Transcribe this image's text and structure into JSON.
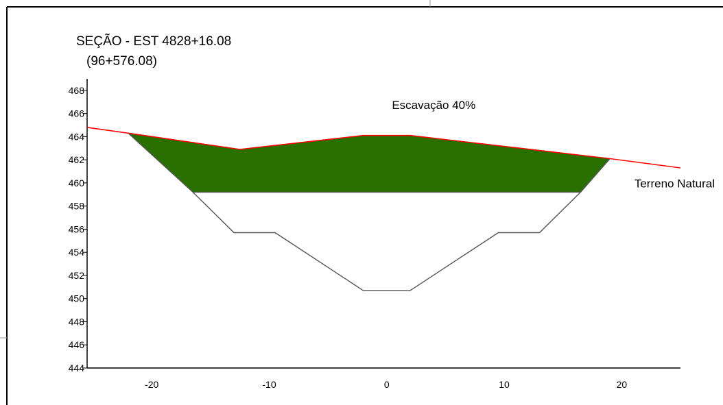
{
  "chart_data": {
    "type": "area",
    "title": "SEÇÃO - EST 4828+16.08",
    "subtitle": "(96+576.08)",
    "xlabel": "",
    "ylabel": "",
    "xlim": [
      -25.5,
      25
    ],
    "ylim": [
      444,
      469
    ],
    "xticks": [
      -20,
      -10,
      0,
      10,
      20
    ],
    "yticks": [
      444,
      446,
      448,
      450,
      452,
      454,
      456,
      458,
      460,
      462,
      464,
      466,
      468
    ],
    "grid": false,
    "legend": "none",
    "series": [
      {
        "name": "Terreno Natural",
        "type": "line",
        "color": "#ff0000",
        "x": [
          -25.5,
          -22,
          -12.5,
          -2,
          2,
          19,
          25
        ],
        "y": [
          464.8,
          464.3,
          462.9,
          464.1,
          464.1,
          462.1,
          461.3
        ]
      },
      {
        "name": "Escavação 40%",
        "type": "area",
        "color": "#2a7000",
        "x": [
          -22,
          -12.5,
          -2,
          2,
          19,
          16.5,
          -16.5
        ],
        "y": [
          464.3,
          462.9,
          464.1,
          464.1,
          462.1,
          459.2,
          459.2
        ]
      },
      {
        "name": "section-outline",
        "type": "line",
        "color": "#555555",
        "x": [
          -22,
          -16.5,
          -13,
          -9.5,
          -2,
          2,
          9.5,
          13,
          16.5,
          19
        ],
        "y": [
          464.3,
          459.2,
          455.7,
          455.7,
          450.7,
          450.7,
          455.7,
          455.7,
          459.2,
          462.1
        ]
      },
      {
        "name": "excavation-floor",
        "type": "line",
        "color": "#555555",
        "x": [
          -16.5,
          16.5
        ],
        "y": [
          459.2,
          459.2
        ]
      }
    ],
    "annotations": [
      {
        "text": "Escavação 40%",
        "x": 4,
        "y": 466.4
      },
      {
        "text": "Terreno Natural",
        "x": 24.5,
        "y": 459.6
      }
    ]
  }
}
